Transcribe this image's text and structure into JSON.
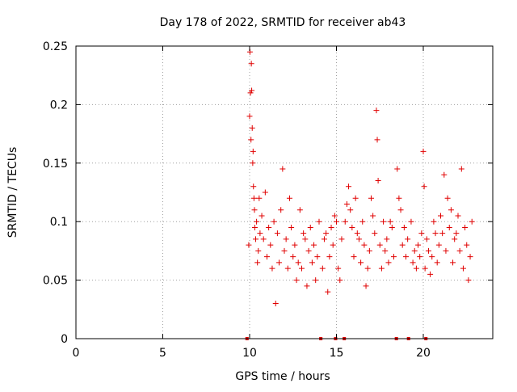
{
  "chart_data": {
    "type": "scatter",
    "title": "Day 178 of 2022, SRMTID for receiver ab43",
    "xlabel": "GPS time / hours",
    "ylabel": "SRMTID / TECUs",
    "xlim": [
      0,
      24
    ],
    "ylim": [
      0,
      0.25
    ],
    "x_ticks": [
      0,
      5,
      10,
      15,
      20
    ],
    "y_ticks": [
      0,
      0.05,
      0.1,
      0.15,
      0.2,
      0.25
    ],
    "x_tick_labels": [
      "0",
      "5",
      "10",
      "15",
      "20"
    ],
    "y_tick_labels": [
      "0",
      "0.05",
      "0.1",
      "0.15",
      "0.2",
      "0.25"
    ],
    "grid": true,
    "marker": "plus",
    "color": "#e00000",
    "gap_markers_x": [
      9.85,
      14.1,
      14.95,
      15.45,
      18.45,
      19.15,
      20.15
    ],
    "series": [
      {
        "name": "SRMTID",
        "x": [
          9.95,
          10.0,
          10.02,
          10.05,
          10.08,
          10.1,
          10.12,
          10.15,
          10.18,
          10.2,
          10.22,
          10.25,
          10.28,
          10.3,
          10.35,
          10.4,
          10.45,
          10.5,
          10.55,
          10.6,
          10.7,
          10.8,
          10.9,
          11.0,
          11.1,
          11.2,
          11.3,
          11.4,
          11.5,
          11.6,
          11.7,
          11.8,
          11.9,
          12.0,
          12.1,
          12.2,
          12.3,
          12.4,
          12.5,
          12.6,
          12.7,
          12.8,
          12.9,
          13.0,
          13.1,
          13.2,
          13.3,
          13.4,
          13.5,
          13.6,
          13.7,
          13.8,
          13.9,
          14.0,
          14.2,
          14.3,
          14.4,
          14.5,
          14.6,
          14.7,
          14.8,
          14.9,
          15.0,
          15.1,
          15.2,
          15.3,
          15.5,
          15.6,
          15.7,
          15.8,
          15.9,
          16.0,
          16.1,
          16.2,
          16.3,
          16.4,
          16.5,
          16.6,
          16.7,
          16.8,
          16.9,
          17.0,
          17.1,
          17.2,
          17.3,
          17.35,
          17.4,
          17.5,
          17.6,
          17.7,
          17.8,
          17.9,
          18.0,
          18.1,
          18.2,
          18.3,
          18.5,
          18.6,
          18.7,
          18.8,
          18.9,
          19.0,
          19.1,
          19.3,
          19.4,
          19.5,
          19.6,
          19.7,
          19.8,
          19.9,
          20.0,
          20.05,
          20.1,
          20.2,
          20.3,
          20.4,
          20.5,
          20.6,
          20.7,
          20.8,
          20.9,
          21.0,
          21.1,
          21.2,
          21.3,
          21.4,
          21.5,
          21.6,
          21.7,
          21.8,
          21.9,
          22.0,
          22.1,
          22.2,
          22.3,
          22.4,
          22.5,
          22.6,
          22.7,
          22.8
        ],
        "y": [
          0.08,
          0.19,
          0.245,
          0.21,
          0.17,
          0.235,
          0.212,
          0.18,
          0.15,
          0.16,
          0.13,
          0.12,
          0.11,
          0.095,
          0.085,
          0.1,
          0.065,
          0.075,
          0.12,
          0.09,
          0.105,
          0.085,
          0.125,
          0.07,
          0.095,
          0.08,
          0.06,
          0.1,
          0.03,
          0.09,
          0.065,
          0.11,
          0.145,
          0.075,
          0.085,
          0.06,
          0.12,
          0.095,
          0.07,
          0.08,
          0.05,
          0.065,
          0.11,
          0.06,
          0.09,
          0.085,
          0.045,
          0.075,
          0.095,
          0.065,
          0.08,
          0.05,
          0.07,
          0.1,
          0.06,
          0.085,
          0.09,
          0.04,
          0.07,
          0.095,
          0.08,
          0.105,
          0.1,
          0.06,
          0.05,
          0.085,
          0.1,
          0.115,
          0.13,
          0.11,
          0.095,
          0.07,
          0.12,
          0.09,
          0.085,
          0.065,
          0.1,
          0.08,
          0.045,
          0.06,
          0.075,
          0.12,
          0.105,
          0.09,
          0.195,
          0.17,
          0.135,
          0.08,
          0.06,
          0.1,
          0.075,
          0.085,
          0.065,
          0.1,
          0.095,
          0.07,
          0.145,
          0.12,
          0.11,
          0.08,
          0.095,
          0.07,
          0.085,
          0.1,
          0.065,
          0.075,
          0.06,
          0.08,
          0.07,
          0.09,
          0.16,
          0.13,
          0.06,
          0.085,
          0.075,
          0.055,
          0.07,
          0.1,
          0.09,
          0.065,
          0.08,
          0.105,
          0.09,
          0.14,
          0.075,
          0.12,
          0.095,
          0.11,
          0.065,
          0.085,
          0.09,
          0.105,
          0.075,
          0.145,
          0.06,
          0.095,
          0.08,
          0.05,
          0.07,
          0.1
        ]
      }
    ]
  }
}
